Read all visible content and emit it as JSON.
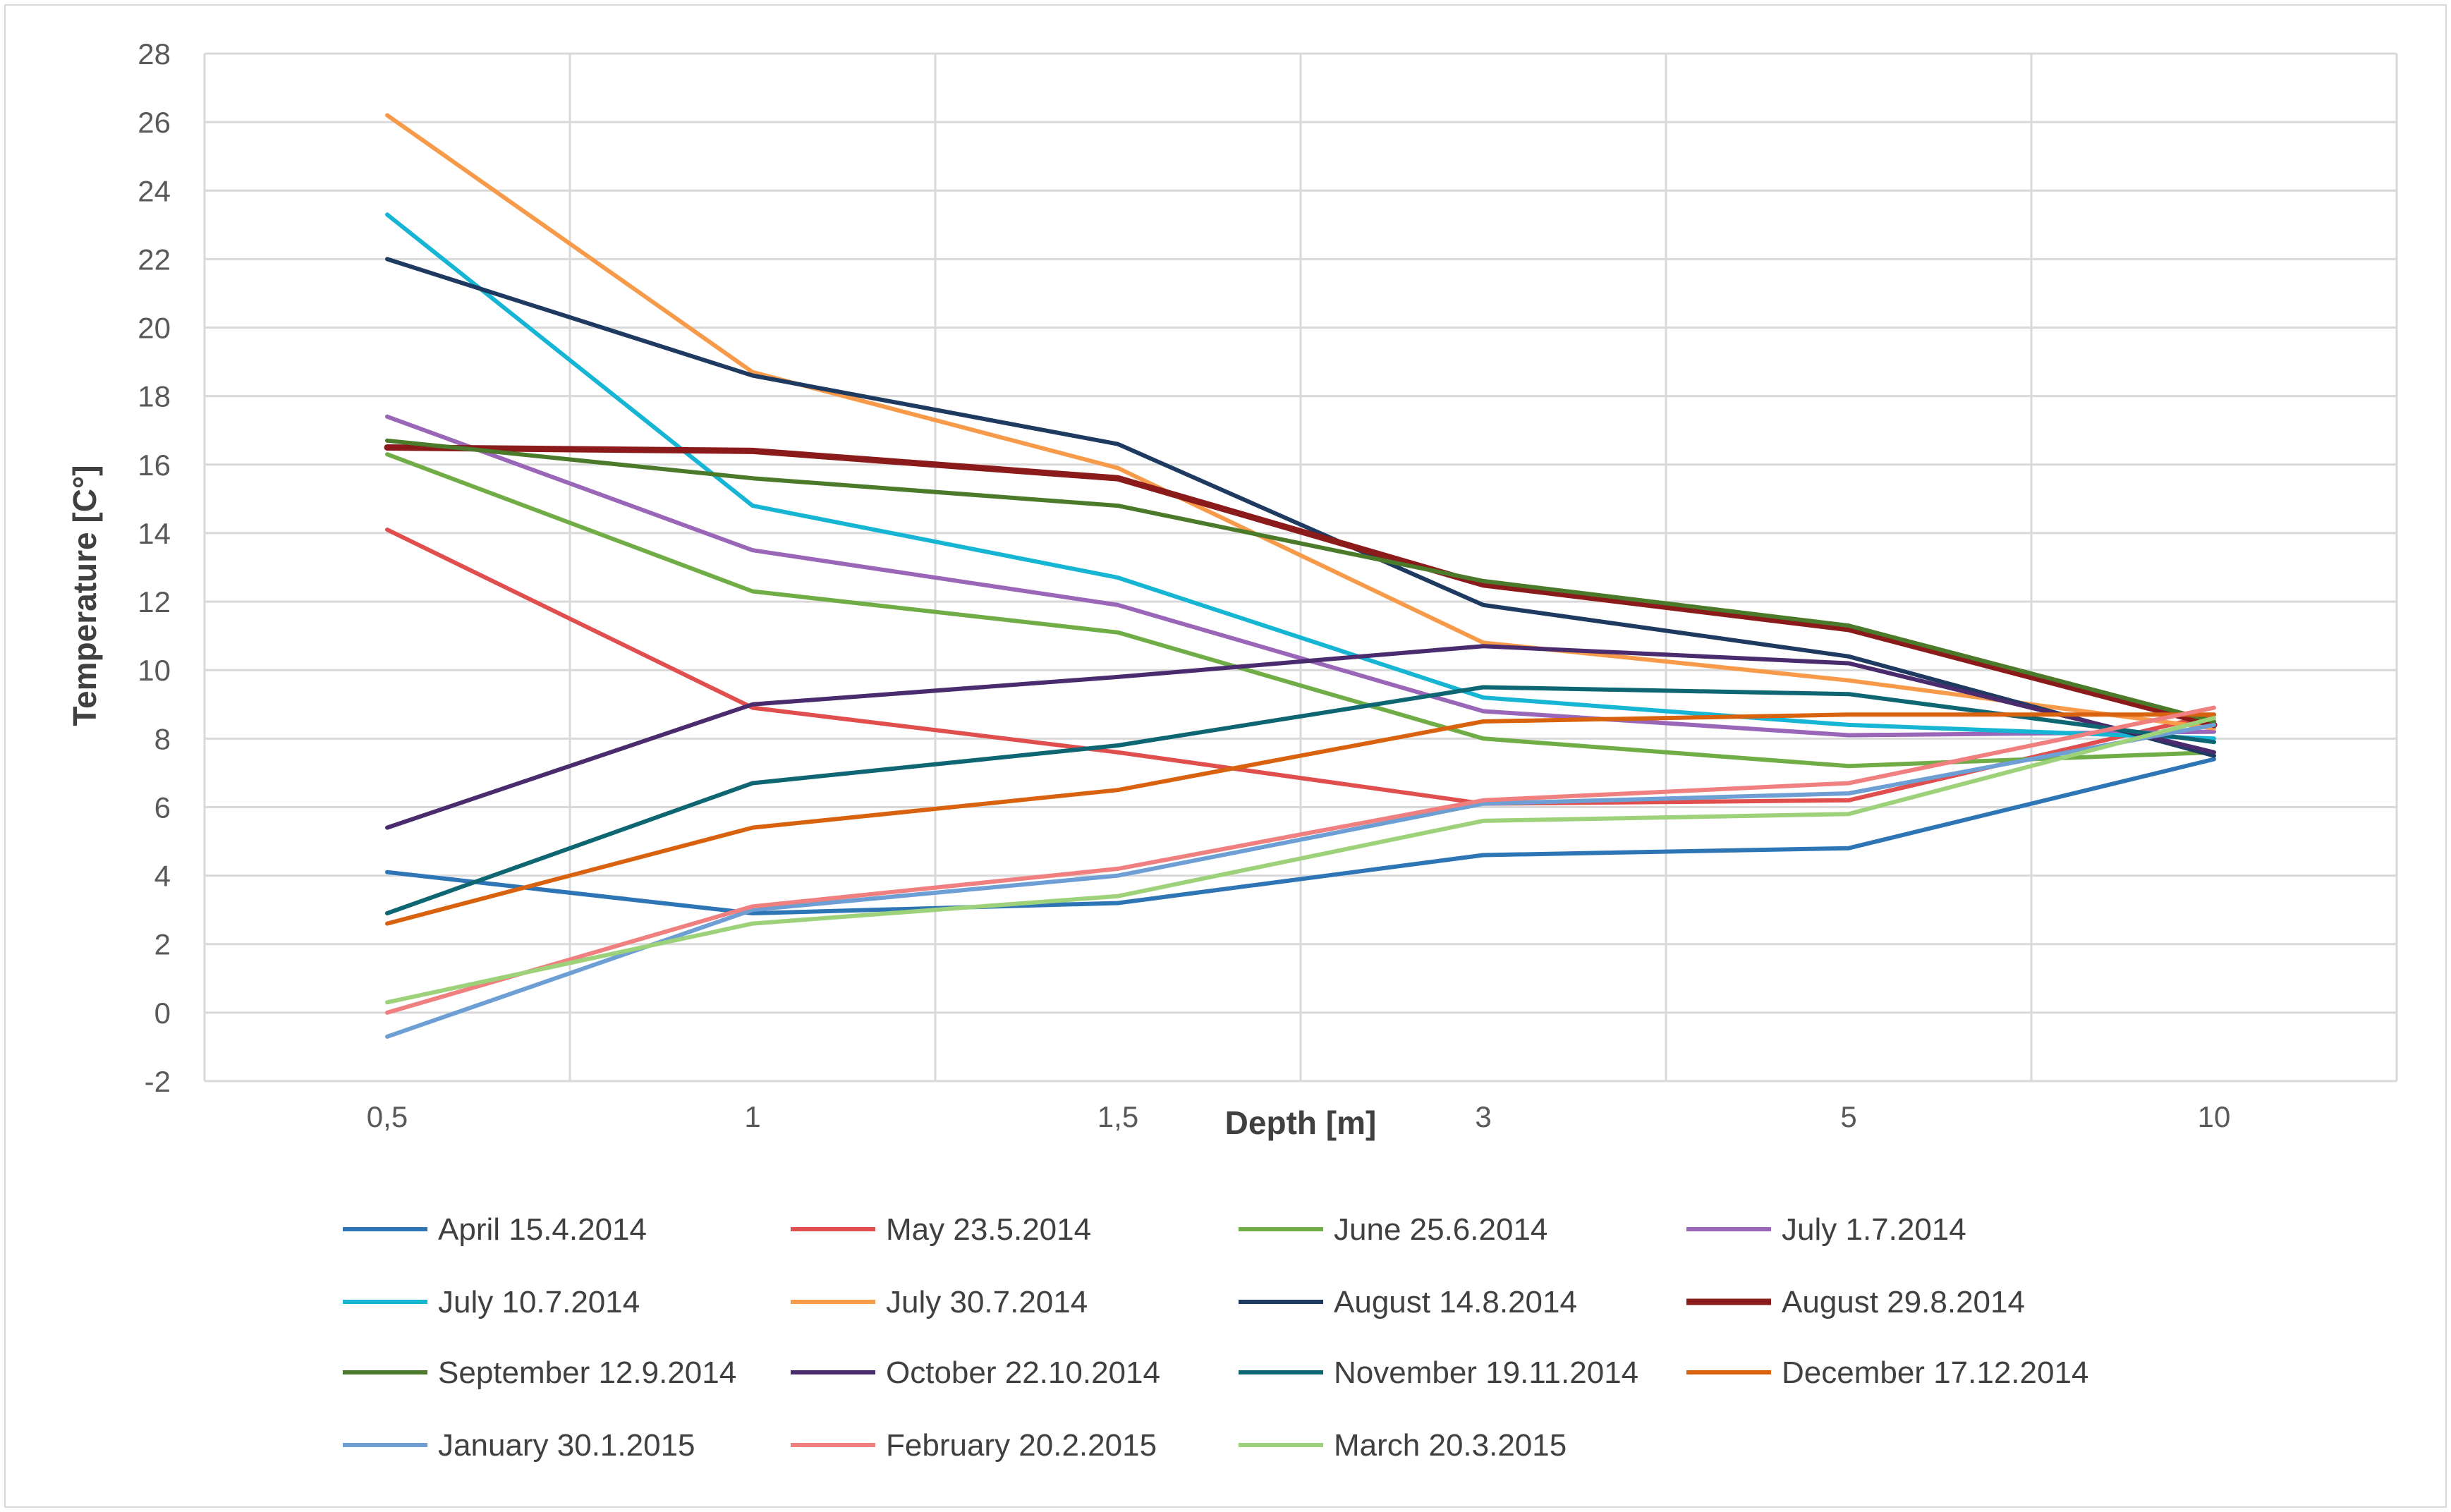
{
  "chart_data": {
    "type": "line",
    "title": "",
    "xlabel": "Depth [m]",
    "ylabel": "Temperature [C°]",
    "categories": [
      "0,5",
      "1",
      "1,5",
      "3",
      "5",
      "10"
    ],
    "ylim": [
      -2,
      28
    ],
    "ytick_step": 2,
    "y_ticks": [
      "-2",
      "0",
      "2",
      "4",
      "6",
      "8",
      "10",
      "12",
      "14",
      "16",
      "18",
      "20",
      "22",
      "24",
      "26",
      "28"
    ],
    "grid": true,
    "legend_position": "bottom",
    "series": [
      {
        "name": "April 15.4.2014",
        "color": "#2e75b6",
        "values": [
          4.1,
          2.9,
          3.2,
          4.6,
          4.8,
          7.4
        ]
      },
      {
        "name": "May 23.5.2014",
        "color": "#e04e4e",
        "values": [
          14.1,
          8.9,
          7.6,
          6.1,
          6.2,
          8.7
        ]
      },
      {
        "name": "June 25.6.2014",
        "color": "#70ad47",
        "values": [
          16.3,
          12.3,
          11.1,
          8.0,
          7.2,
          7.6
        ]
      },
      {
        "name": "July 1.7.2014",
        "color": "#9966b8",
        "values": [
          17.4,
          13.5,
          11.9,
          8.8,
          8.1,
          8.2
        ]
      },
      {
        "name": "July 10.7.2014",
        "color": "#17b5d4",
        "values": [
          23.3,
          14.8,
          12.7,
          9.2,
          8.4,
          8.0
        ]
      },
      {
        "name": "July 30.7.2014",
        "color": "#f79b4a",
        "values": [
          26.2,
          18.7,
          15.9,
          10.8,
          9.7,
          8.3
        ]
      },
      {
        "name": "August 14.8.2014",
        "color": "#1f3a60",
        "values": [
          22.0,
          18.6,
          16.6,
          11.9,
          10.4,
          7.5
        ]
      },
      {
        "name": "August 29.8.2014",
        "color": "#8b1a1a",
        "values": [
          16.5,
          16.4,
          15.6,
          12.5,
          11.2,
          8.4
        ]
      },
      {
        "name": "September 12.9.2014",
        "color": "#4a7a2a",
        "values": [
          16.7,
          15.6,
          14.8,
          12.6,
          11.3,
          8.5
        ]
      },
      {
        "name": "October 22.10.2014",
        "color": "#4a2c6e",
        "values": [
          5.4,
          9.0,
          9.8,
          10.7,
          10.2,
          7.6
        ]
      },
      {
        "name": "November 19.11.2014",
        "color": "#0e6672",
        "values": [
          2.9,
          6.7,
          7.8,
          9.5,
          9.3,
          7.9
        ]
      },
      {
        "name": "December 17.12.2014",
        "color": "#d9620f",
        "values": [
          2.6,
          5.4,
          6.5,
          8.5,
          8.7,
          8.7
        ]
      },
      {
        "name": "January 30.1.2015",
        "color": "#6e9fd4",
        "values": [
          -0.7,
          3.0,
          4.0,
          6.1,
          6.4,
          8.4
        ]
      },
      {
        "name": "February 20.2.2015",
        "color": "#f07f7f",
        "values": [
          0.0,
          3.1,
          4.2,
          6.2,
          6.7,
          8.9
        ]
      },
      {
        "name": "March 20.3.2015",
        "color": "#9dd27a",
        "values": [
          0.3,
          2.6,
          3.4,
          5.6,
          5.8,
          8.6
        ]
      }
    ]
  }
}
